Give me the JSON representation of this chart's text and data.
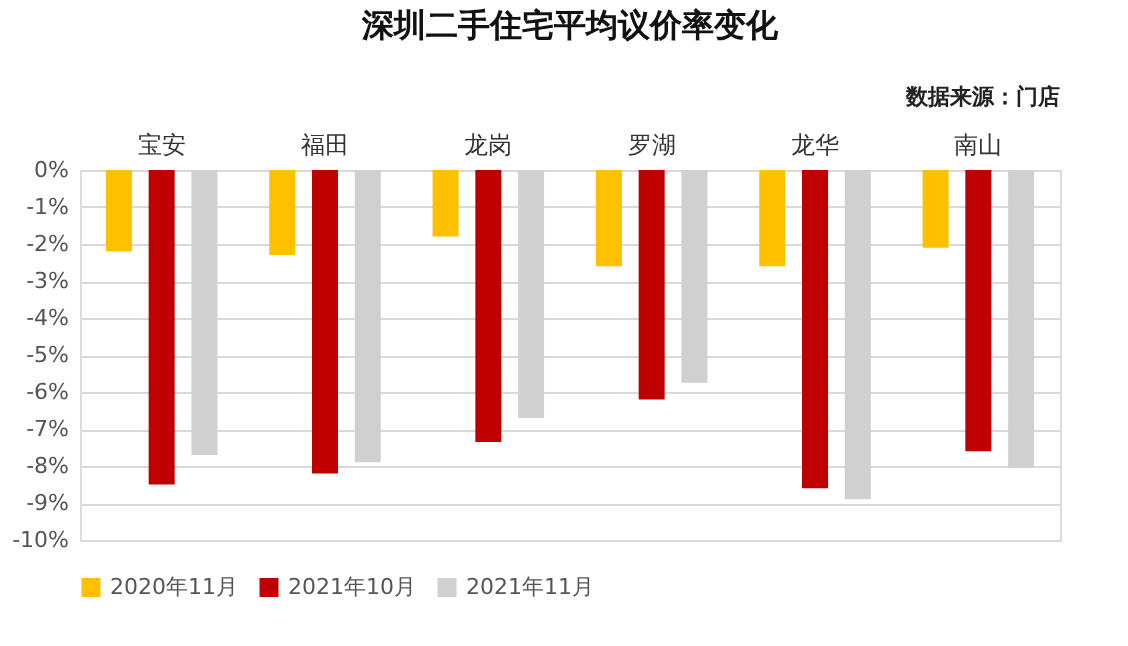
{
  "chart_data": {
    "type": "bar",
    "title": "深圳二手住宅平均议价率变化",
    "annotations": [
      "数据来源：门店"
    ],
    "categories": [
      "宝安",
      "福田",
      "龙岗",
      "罗湖",
      "龙华",
      "南山"
    ],
    "series": [
      {
        "name": "2020年11月",
        "color": "#ffc000",
        "values": [
          -2.2,
          -2.3,
          -1.8,
          -2.6,
          -2.6,
          -2.1
        ]
      },
      {
        "name": "2021年10月",
        "color": "#c00000",
        "values": [
          -8.5,
          -8.2,
          -7.35,
          -6.2,
          -8.6,
          -7.6
        ]
      },
      {
        "name": "2021年11月",
        "color": "#d0d0d0",
        "values": [
          -7.7,
          -7.9,
          -6.7,
          -5.75,
          -8.9,
          -8.05
        ]
      }
    ],
    "ylim": [
      -10,
      0
    ],
    "yticks": [
      {
        "value": 0,
        "label": "0%"
      },
      {
        "value": -1,
        "label": "-1%"
      },
      {
        "value": -2,
        "label": "-2%"
      },
      {
        "value": -3,
        "label": "-3%"
      },
      {
        "value": -4,
        "label": "-4%"
      },
      {
        "value": -5,
        "label": "-5%"
      },
      {
        "value": -6,
        "label": "-6%"
      },
      {
        "value": -7,
        "label": "-7%"
      },
      {
        "value": -8,
        "label": "-8%"
      },
      {
        "value": -9,
        "label": "-9%"
      },
      {
        "value": -10,
        "label": "-10%"
      }
    ],
    "grid": "y",
    "legend": "bottom"
  }
}
